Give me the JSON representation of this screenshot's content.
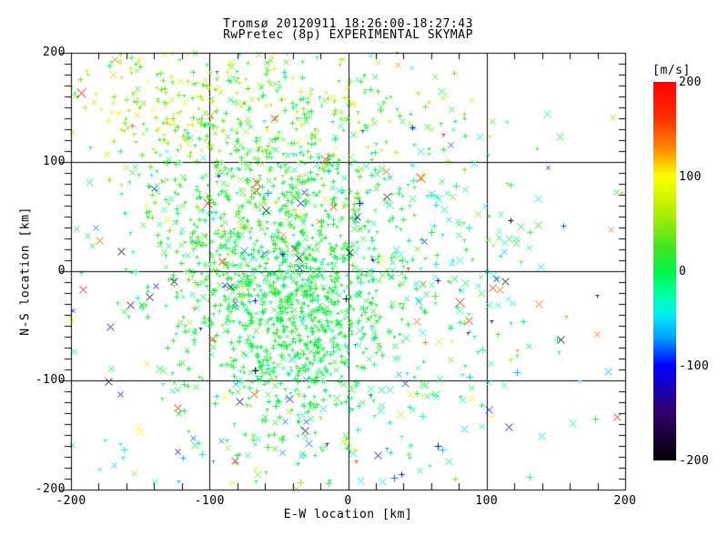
{
  "window": {
    "background": "#ffffff",
    "foreground": "#000000"
  },
  "chart_data": {
    "type": "scatter",
    "title": "Tromsø 20120911 18:26:00-18:27:43",
    "subtitle": "RwPretec (8p) EXPERIMENTAL SKYMAP",
    "xlabel": "E-W location [km]",
    "ylabel": "N-S location [km]",
    "xlim": [
      -200,
      200
    ],
    "ylim": [
      -200,
      200
    ],
    "x_major_ticks": [
      -200,
      -100,
      0,
      100,
      200
    ],
    "y_major_ticks": [
      -200,
      -100,
      0,
      100,
      200
    ],
    "x_minor_step": 20,
    "y_minor_step": 10,
    "grid_x": [
      -100,
      0,
      100
    ],
    "grid_y": [
      -100,
      0,
      100
    ],
    "grid_on": true,
    "frame_color": "#000000",
    "marker_symbols": [
      "plus",
      "x",
      "tri"
    ],
    "colorbar": {
      "unit_label": "[m/s]",
      "ticks": [
        200,
        100,
        0,
        -100,
        -200
      ],
      "position": "right",
      "stops": [
        [
          -200,
          "#000000"
        ],
        [
          -150,
          "#320069"
        ],
        [
          -100,
          "#0000ff"
        ],
        [
          -70,
          "#00a0ff"
        ],
        [
          -45,
          "#00f0f0"
        ],
        [
          -25,
          "#00ffa8"
        ],
        [
          0,
          "#00f546"
        ],
        [
          25,
          "#44e422"
        ],
        [
          60,
          "#aaee00"
        ],
        [
          100,
          "#ffff00"
        ],
        [
          130,
          "#ff8800"
        ],
        [
          160,
          "#ff3300"
        ],
        [
          200,
          "#ff0000"
        ]
      ]
    },
    "seed": 20120911,
    "point_clusters": [
      {
        "name": "dense-core",
        "count": 900,
        "cx": -35,
        "cy": -35,
        "sx": 36,
        "sy": 52,
        "v_mean": 3,
        "v_sigma": 11,
        "symbols": {
          "plus": 0.5,
          "x": 0.28,
          "tri": 0.22
        },
        "size": [
          4,
          7
        ]
      },
      {
        "name": "core-upper",
        "count": 400,
        "cx": -45,
        "cy": 60,
        "sx": 55,
        "sy": 45,
        "v_mean": 12,
        "v_sigma": 20,
        "symbols": {
          "plus": 0.5,
          "x": 0.25,
          "tri": 0.25
        },
        "size": [
          4,
          7
        ]
      },
      {
        "name": "left-mid",
        "count": 240,
        "cx": -105,
        "cy": 10,
        "sx": 38,
        "sy": 70,
        "v_mean": 8,
        "v_sigma": 22,
        "symbols": {
          "plus": 0.45,
          "x": 0.3,
          "tri": 0.25
        },
        "size": [
          4,
          7
        ]
      },
      {
        "name": "top-band",
        "count": 330,
        "cx": -55,
        "cy": 150,
        "sx": 75,
        "sy": 40,
        "v_mean": 38,
        "v_sigma": 32,
        "symbols": {
          "plus": 0.45,
          "x": 0.3,
          "tri": 0.25
        },
        "size": [
          4,
          7
        ]
      },
      {
        "name": "top-left",
        "count": 90,
        "cx": -140,
        "cy": 155,
        "sx": 38,
        "sy": 35,
        "v_mean": 62,
        "v_sigma": 28,
        "symbols": {
          "plus": 0.4,
          "x": 0.3,
          "tri": 0.3
        },
        "size": [
          4,
          7
        ]
      },
      {
        "name": "right-mid",
        "count": 150,
        "cx": 65,
        "cy": -5,
        "sx": 48,
        "sy": 75,
        "v_mean": -18,
        "v_sigma": 28,
        "symbols": {
          "x": 0.6,
          "plus": 0.2,
          "tri": 0.2
        },
        "size": [
          5,
          9
        ]
      },
      {
        "name": "bottom-sparse",
        "count": 110,
        "cx": -40,
        "cy": -150,
        "sx": 85,
        "sy": 38,
        "v_mean": -15,
        "v_sigma": 55,
        "symbols": {
          "x": 0.55,
          "plus": 0.2,
          "tri": 0.25
        },
        "size": [
          5,
          9
        ]
      },
      {
        "name": "wide-scatter",
        "count": 130,
        "cx": 0,
        "cy": 0,
        "sx": 115,
        "sy": 115,
        "v_mean": -5,
        "v_sigma": 75,
        "symbols": {
          "x": 0.5,
          "plus": 0.25,
          "tri": 0.25
        },
        "size": [
          5,
          9
        ]
      },
      {
        "name": "red-outliers",
        "count": 26,
        "cx": -20,
        "cy": 20,
        "sx": 110,
        "sy": 100,
        "v_mean": 180,
        "v_sigma": 18,
        "symbols": {
          "x": 0.85,
          "tri": 0.15
        },
        "size": [
          7,
          10
        ]
      },
      {
        "name": "orange-outliers",
        "count": 16,
        "cx": -30,
        "cy": 60,
        "sx": 100,
        "sy": 80,
        "v_mean": 135,
        "v_sigma": 15,
        "symbols": {
          "x": 0.7,
          "tri": 0.3
        },
        "size": [
          6,
          9
        ]
      },
      {
        "name": "black-outliers",
        "count": 12,
        "cx": 0,
        "cy": 0,
        "sx": 110,
        "sy": 90,
        "v_mean": -196,
        "v_sigma": 4,
        "symbols": {
          "x": 1.0
        },
        "size": [
          7,
          9
        ]
      },
      {
        "name": "blue-outliers",
        "count": 14,
        "cx": -30,
        "cy": 30,
        "sx": 90,
        "sy": 90,
        "v_mean": -100,
        "v_sigma": 12,
        "symbols": {
          "plus": 0.5,
          "x": 0.5
        },
        "size": [
          4,
          6
        ]
      }
    ]
  }
}
